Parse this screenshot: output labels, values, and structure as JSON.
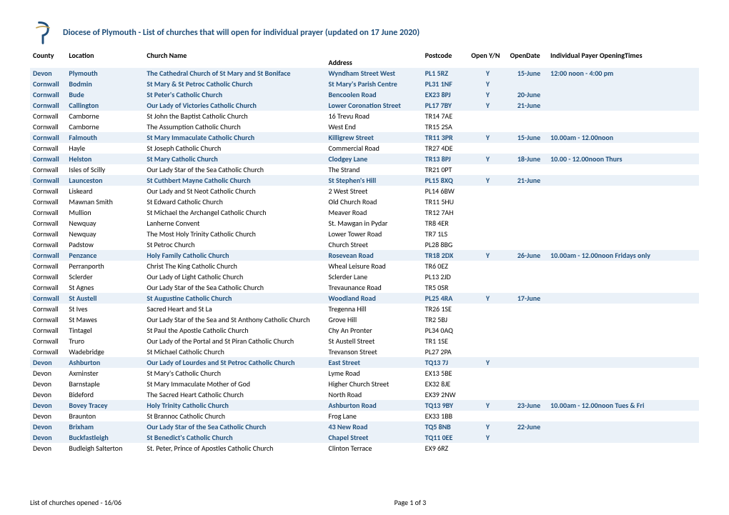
{
  "title": "Diocese of Plymouth - List of churches that will open for individual prayer (updated on 17 June 2020)",
  "logo_color_primary": "#1f4e79",
  "logo_color_accent": "#c0a050",
  "columns": {
    "county": "County",
    "location": "Location",
    "church": "Church Name",
    "address": "Address",
    "postcode": "Postcode",
    "open": "Open Y/N",
    "opendate": "OpenDate",
    "times": "Individual Payer OpeningTimes"
  },
  "rows": [
    {
      "hl": true,
      "county": "Devon",
      "location": "Plymouth",
      "church": "The Cathedral Church of St Mary and St Boniface",
      "address": "Wyndham Street West",
      "postcode": "PL1 5RZ",
      "open": "Y",
      "date": "15-June",
      "times": "12:00 noon - 4:00 pm"
    },
    {
      "hl": true,
      "county": "Cornwall",
      "location": "Bodmin",
      "church": "St Mary & St Petroc Catholic Church",
      "address": "St Mary's Parish Centre",
      "postcode": "PL31 1NF",
      "open": "Y",
      "date": "",
      "times": ""
    },
    {
      "hl": true,
      "county": "Cornwall",
      "location": "Bude",
      "church": "St Peter's Catholic Church",
      "address": "Bencoolen Road",
      "postcode": "EX23 8PJ",
      "open": "Y",
      "date": "20-June",
      "times": ""
    },
    {
      "hl": true,
      "county": "Cornwall",
      "location": "Callington",
      "church": "Our Lady of Victories Catholic Church",
      "address": "Lower Coronation Street",
      "postcode": "PL17 7BY",
      "open": "Y",
      "date": "21-June",
      "times": ""
    },
    {
      "hl": false,
      "county": "Cornwall",
      "location": "Camborne",
      "church": "St John the Baptist Catholic Church",
      "address": "16 Trevu Road",
      "postcode": "TR14 7AE",
      "open": "",
      "date": "",
      "times": ""
    },
    {
      "hl": false,
      "county": "Cornwall",
      "location": "Camborne",
      "church": "The Assumption Catholic Church",
      "address": "West End",
      "postcode": "TR15 2SA",
      "open": "",
      "date": "",
      "times": ""
    },
    {
      "hl": true,
      "county": "Cornwall",
      "location": "Falmouth",
      "church": "St Mary Immaculate Catholic Church",
      "address": "Killigrew Street",
      "postcode": "TR11 3PR",
      "open": "Y",
      "date": "15-June",
      "times": "10.00am - 12.00noon"
    },
    {
      "hl": false,
      "county": "Cornwall",
      "location": "Hayle",
      "church": "St Joseph Catholic Church",
      "address": "Commercial Road",
      "postcode": "TR27 4DE",
      "open": "",
      "date": "",
      "times": ""
    },
    {
      "hl": true,
      "county": "Cornwall",
      "location": "Helston",
      "church": "St Mary Catholic Church",
      "address": "Clodgey Lane",
      "postcode": "TR13 8PJ",
      "open": "Y",
      "date": "18-June",
      "times": "10.00 - 12.00noon Thurs"
    },
    {
      "hl": false,
      "county": "Cornwall",
      "location": "Isles of Scilly",
      "church": "Our Lady Star of the Sea Catholic Church",
      "address": "The Strand",
      "postcode": "TR21 0PT",
      "open": "",
      "date": "",
      "times": ""
    },
    {
      "hl": true,
      "county": "Cornwall",
      "location": "Launceston",
      "church": "St Cuthbert Mayne Catholic Church",
      "address": "St Stephen's Hill",
      "postcode": "PL15 8XQ",
      "open": "Y",
      "date": "21-June",
      "times": ""
    },
    {
      "hl": false,
      "county": "Cornwall",
      "location": "Liskeard",
      "church": "Our Lady and St Neot Catholic Church",
      "address": "2 West Street",
      "postcode": "PL14 6BW",
      "open": "",
      "date": "",
      "times": ""
    },
    {
      "hl": false,
      "county": "Cornwall",
      "location": "Mawnan Smith",
      "church": "St Edward Catholic Church",
      "address": "Old Church Road",
      "postcode": "TR11 5HU",
      "open": "",
      "date": "",
      "times": ""
    },
    {
      "hl": false,
      "county": "Cornwall",
      "location": "Mullion",
      "church": "St Michael the Archangel Catholic Church",
      "address": "Meaver Road",
      "postcode": "TR12 7AH",
      "open": "",
      "date": "",
      "times": ""
    },
    {
      "hl": false,
      "county": "Cornwall",
      "location": "Newquay",
      "church": "Lanherne Convent",
      "address": "St. Mawgan in Pydar",
      "postcode": "TR8 4ER",
      "open": "",
      "date": "",
      "times": ""
    },
    {
      "hl": false,
      "county": "Cornwall",
      "location": "Newquay",
      "church": "The Most Holy Trinity Catholic Church",
      "address": "Lower Tower Road",
      "postcode": "TR7 1LS",
      "open": "",
      "date": "",
      "times": ""
    },
    {
      "hl": false,
      "county": "Cornwall",
      "location": "Padstow",
      "church": "St Petroc Church",
      "address": "Church Street",
      "postcode": "PL28 8BG",
      "open": "",
      "date": "",
      "times": ""
    },
    {
      "hl": true,
      "county": "Cornwall",
      "location": "Penzance",
      "church": "Holy Family Catholic Church",
      "address": "Rosevean Road",
      "postcode": "TR18 2DX",
      "open": "Y",
      "date": "26-June",
      "times": "10.00am - 12.00noon Fridays only"
    },
    {
      "hl": false,
      "county": "Cornwall",
      "location": "Perranporth",
      "church": "Christ The King Catholic Church",
      "address": "Wheal Leisure Road",
      "postcode": "TR6 0EZ",
      "open": "",
      "date": "",
      "times": ""
    },
    {
      "hl": false,
      "county": "Cornwall",
      "location": "Sclerder",
      "church": "Our Lady of Light Catholic Church",
      "address": "Sclerder Lane",
      "postcode": "PL13 2JD",
      "open": "",
      "date": "",
      "times": ""
    },
    {
      "hl": false,
      "county": "Cornwall",
      "location": "St Agnes",
      "church": "Our Lady Star of the Sea Catholic Church",
      "address": "Trevaunance Road",
      "postcode": "TR5 0SR",
      "open": "",
      "date": "",
      "times": ""
    },
    {
      "hl": true,
      "county": "Cornwall",
      "location": "St Austell",
      "church": "St Augustine Catholic Church",
      "address": "Woodland Road",
      "postcode": "PL25 4RA",
      "open": "Y",
      "date": "17-June",
      "times": ""
    },
    {
      "hl": false,
      "county": "Cornwall",
      "location": "St Ives",
      "church": "Sacred Heart and St La",
      "address": "Tregenna Hill",
      "postcode": "TR26 1SE",
      "open": "",
      "date": "",
      "times": ""
    },
    {
      "hl": false,
      "county": "Cornwall",
      "location": "St Mawes",
      "church": "Our Lady Star of the Sea and St Anthony Catholic Church",
      "address": "Grove Hill",
      "postcode": "TR2 5BJ",
      "open": "",
      "date": "",
      "times": ""
    },
    {
      "hl": false,
      "county": "Cornwall",
      "location": "Tintagel",
      "church": "St Paul the Apostle Catholic Church",
      "address": "Chy An Pronter",
      "postcode": "PL34 0AQ",
      "open": "",
      "date": "",
      "times": ""
    },
    {
      "hl": false,
      "county": "Cornwall",
      "location": "Truro",
      "church": "Our Lady of the Portal and St Piran Catholic Church",
      "address": "St Austell Street",
      "postcode": "TR1 1SE",
      "open": "",
      "date": "",
      "times": ""
    },
    {
      "hl": false,
      "county": "Cornwall",
      "location": "Wadebridge",
      "church": "St Michael Catholic Church",
      "address": "Trevanson Street",
      "postcode": "PL27 2PA",
      "open": "",
      "date": "",
      "times": ""
    },
    {
      "hl": true,
      "county": "Devon",
      "location": "Ashburton",
      "church": "Our Lady of Lourdes and St Petroc Catholic Church",
      "address": "East Street",
      "postcode": "TQ13 7J",
      "open": "Y",
      "date": "",
      "times": ""
    },
    {
      "hl": false,
      "county": "Devon",
      "location": "Axminster",
      "church": "St Mary's Catholic Church",
      "address": "Lyme Road",
      "postcode": "EX13 5BE",
      "open": "",
      "date": "",
      "times": ""
    },
    {
      "hl": false,
      "county": "Devon",
      "location": "Barnstaple",
      "church": "St Mary Immaculate Mother of God",
      "address": "Higher Church Street",
      "postcode": "EX32 8JE",
      "open": "",
      "date": "",
      "times": ""
    },
    {
      "hl": false,
      "county": "Devon",
      "location": "Bideford",
      "church": "The Sacred Heart Catholic Church",
      "address": "North Road",
      "postcode": "EX39 2NW",
      "open": "",
      "date": "",
      "times": ""
    },
    {
      "hl": true,
      "county": "Devon",
      "location": "Bovey Tracey",
      "church": "Holy Trinity Catholic Church",
      "address": "Ashburton Road",
      "postcode": "TQ13 9BY",
      "open": "Y",
      "date": "23-June",
      "times": "10.00am - 12.00noon Tues & Fri"
    },
    {
      "hl": false,
      "county": "Devon",
      "location": "Braunton",
      "church": "St Brannoc Catholic Church",
      "address": "Frog Lane",
      "postcode": "EX33 1BB",
      "open": "",
      "date": "",
      "times": ""
    },
    {
      "hl": true,
      "county": "Devon",
      "location": "Brixham",
      "church": "Our Lady Star of the Sea Catholic Church",
      "address": "43 New Road",
      "postcode": "TQ5 8NB",
      "open": "Y",
      "date": "22-June",
      "times": ""
    },
    {
      "hl": true,
      "county": "Devon",
      "location": "Buckfastleigh",
      "church": "St Benedict's Catholic Church",
      "address": "Chapel Street",
      "postcode": "TQ11 0EE",
      "open": "Y",
      "date": "",
      "times": ""
    },
    {
      "hl": false,
      "county": "Devon",
      "location": "Budleigh Salterton",
      "church": "St. Peter, Prince of Apostles Catholic Church",
      "address": "Clinton Terrace",
      "postcode": "EX9 6RZ",
      "open": "",
      "date": "",
      "times": ""
    }
  ],
  "footer_left": "List of churches opened - 16/06",
  "footer_center": "Page 1 of 3"
}
